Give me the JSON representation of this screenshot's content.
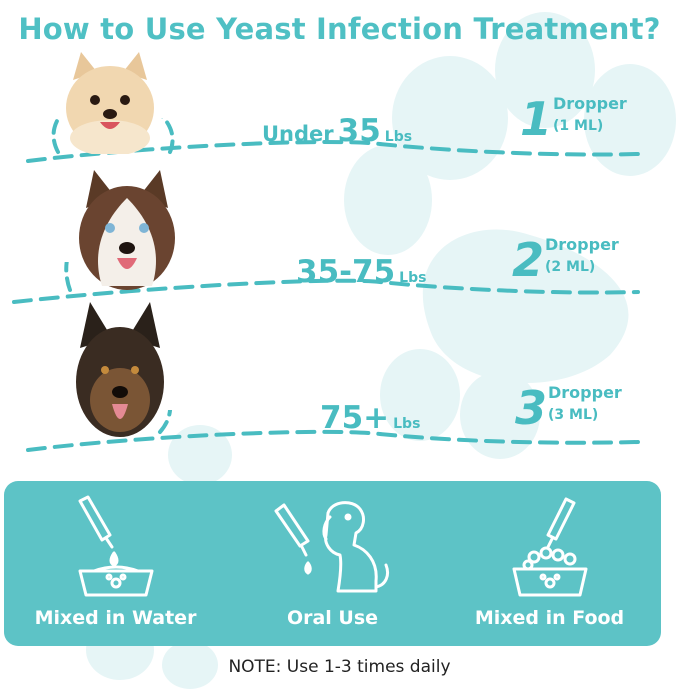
{
  "title": "How to Use Yeast Infection Treatment?",
  "colors": {
    "accent": "#49bcc1",
    "panel": "#5dc3c6",
    "paw_bg": "#e4f4f5",
    "note_text": "#222222"
  },
  "dosage_rows": [
    {
      "dog": "pomeranian-photo",
      "weight_lead": "Under",
      "weight_value": "35",
      "weight_unit": "Lbs",
      "dropper_count": "1",
      "dropper_word": "Dropper",
      "dropper_ml": "(1 ML)"
    },
    {
      "dog": "husky-photo",
      "weight_lead": "",
      "weight_value": "35-75",
      "weight_unit": "Lbs",
      "dropper_count": "2",
      "dropper_word": "Dropper",
      "dropper_ml": "(2 ML)"
    },
    {
      "dog": "german-shepherd-photo",
      "weight_lead": "",
      "weight_value": "75+",
      "weight_unit": "Lbs",
      "dropper_count": "3",
      "dropper_word": "Dropper",
      "dropper_ml": "(3 ML)"
    }
  ],
  "methods": [
    {
      "icon": "dropper-water-bowl-icon",
      "label": "Mixed in Water"
    },
    {
      "icon": "dropper-dog-icon",
      "label": "Oral Use"
    },
    {
      "icon": "dropper-food-bowl-icon",
      "label": "Mixed in Food"
    }
  ],
  "note": "NOTE: Use 1-3 times daily"
}
